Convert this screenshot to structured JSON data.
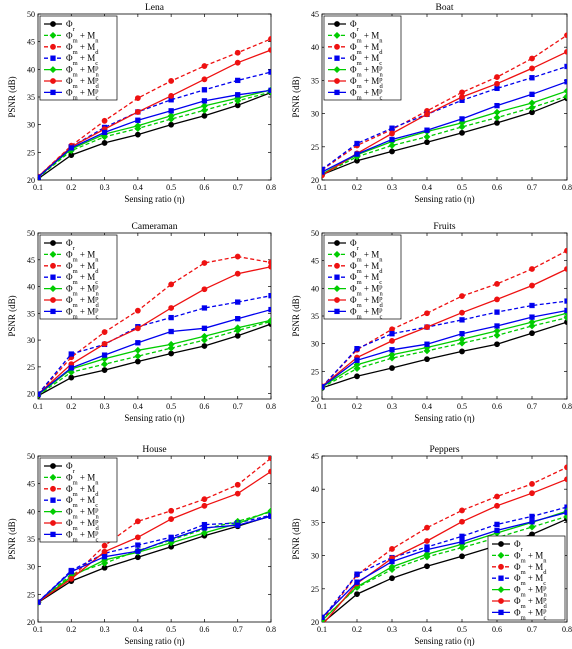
{
  "figure": {
    "x_ticks": [
      "0.1",
      "0.2",
      "0.3",
      "0.4",
      "0.5",
      "0.6",
      "0.7",
      "0.8"
    ]
  },
  "legend_labels": [
    {
      "base": "Φ",
      "sub": "r",
      "sup": "",
      "dashed": false,
      "color": "#000000",
      "marker": "circle"
    },
    {
      "base": "Φ",
      "sub": "m",
      "plus": " + M",
      "sub2": "n",
      "sup": "",
      "dashed": true,
      "color": "#00cc00",
      "marker": "diamond"
    },
    {
      "base": "Φ",
      "sub": "m",
      "plus": " + M",
      "sub2": "d",
      "sup": "",
      "dashed": true,
      "color": "#ee1111",
      "marker": "circle"
    },
    {
      "base": "Φ",
      "sub": "m",
      "plus": " + M",
      "sub2": "c",
      "sup": "",
      "dashed": true,
      "color": "#0000ee",
      "marker": "square"
    },
    {
      "base": "Φ",
      "sub": "m",
      "plus": " + M",
      "sub2": "n",
      "sup": "p",
      "dashed": false,
      "color": "#00cc00",
      "marker": "diamond"
    },
    {
      "base": "Φ",
      "sub": "m",
      "plus": " + M",
      "sub2": "d",
      "sup": "p",
      "dashed": false,
      "color": "#ee1111",
      "marker": "circle"
    },
    {
      "base": "Φ",
      "sub": "m",
      "plus": " + M",
      "sub2": "c",
      "sup": "p",
      "dashed": false,
      "color": "#0000ee",
      "marker": "square"
    }
  ],
  "chart_data": [
    {
      "type": "line",
      "title": "Lena",
      "xlabel": "Sensing ratio (η)",
      "ylabel": "PSNR (dB)",
      "ylim": [
        20,
        50
      ],
      "yticks": [
        20,
        25,
        30,
        35,
        40,
        45,
        50
      ],
      "legend": "top-left",
      "x": [
        0.1,
        0.2,
        0.3,
        0.4,
        0.5,
        0.6,
        0.7,
        0.8
      ],
      "series": [
        {
          "name": "Φr",
          "values": [
            20.2,
            24.5,
            26.7,
            28.2,
            30.0,
            31.6,
            33.5,
            35.8
          ]
        },
        {
          "name": "Φm + Mn",
          "values": [
            20.4,
            25.3,
            27.8,
            29.3,
            31.0,
            32.6,
            34.3,
            35.9
          ]
        },
        {
          "name": "Φm + Md",
          "values": [
            20.6,
            26.2,
            30.7,
            34.8,
            37.9,
            40.6,
            43.0,
            45.5
          ]
        },
        {
          "name": "Φm + Mc",
          "values": [
            20.5,
            26.0,
            29.5,
            32.3,
            34.5,
            36.3,
            38.0,
            39.5
          ]
        },
        {
          "name": "Φm + Mn^p",
          "values": [
            20.5,
            25.6,
            28.3,
            29.8,
            31.6,
            33.4,
            34.8,
            36.3
          ]
        },
        {
          "name": "Φm + Md^p",
          "values": [
            20.6,
            26.0,
            29.2,
            32.3,
            35.2,
            38.2,
            41.2,
            43.5
          ]
        },
        {
          "name": "Φm + Mc^p",
          "values": [
            20.5,
            25.8,
            28.6,
            30.8,
            32.5,
            34.3,
            35.4,
            36.2
          ]
        }
      ]
    },
    {
      "type": "line",
      "title": "Boat",
      "xlabel": "Sensing ratio (η)",
      "ylabel": "PSNR (dB)",
      "ylim": [
        20,
        45
      ],
      "yticks": [
        20,
        25,
        30,
        35,
        40,
        45
      ],
      "legend": "top-left",
      "x": [
        0.1,
        0.2,
        0.3,
        0.4,
        0.5,
        0.6,
        0.7,
        0.8
      ],
      "series": [
        {
          "name": "Φr",
          "values": [
            20.8,
            22.9,
            24.3,
            25.7,
            27.1,
            28.6,
            30.2,
            32.3
          ]
        },
        {
          "name": "Φm + Mn",
          "values": [
            20.8,
            23.5,
            25.2,
            26.5,
            28.0,
            29.4,
            30.9,
            32.6
          ]
        },
        {
          "name": "Φm + Md",
          "values": [
            21.5,
            25.2,
            27.6,
            30.4,
            33.2,
            35.5,
            38.3,
            41.8
          ]
        },
        {
          "name": "Φm + Mc",
          "values": [
            21.6,
            25.5,
            27.8,
            29.9,
            32.0,
            33.8,
            35.4,
            37.1
          ]
        },
        {
          "name": "Φm + Mn^p",
          "values": [
            20.9,
            23.8,
            25.8,
            27.3,
            28.6,
            30.2,
            31.6,
            33.4
          ]
        },
        {
          "name": "Φm + Md^p",
          "values": [
            20.7,
            24.0,
            27.0,
            29.9,
            32.5,
            34.5,
            36.8,
            39.3
          ]
        },
        {
          "name": "Φm + Mc^p",
          "values": [
            21.2,
            23.9,
            26.1,
            27.5,
            29.2,
            31.2,
            32.9,
            34.8
          ]
        }
      ]
    },
    {
      "type": "line",
      "title": "Cameraman",
      "xlabel": "Sensing ratio (η)",
      "ylabel": "PSNR (dB)",
      "ylim": [
        19,
        50
      ],
      "yticks": [
        20,
        25,
        30,
        35,
        40,
        45,
        50
      ],
      "legend": "top-left",
      "x": [
        0.1,
        0.2,
        0.3,
        0.4,
        0.5,
        0.6,
        0.7,
        0.8
      ],
      "series": [
        {
          "name": "Φr",
          "values": [
            19.6,
            23.0,
            24.4,
            26.0,
            27.5,
            28.9,
            30.8,
            33.0
          ]
        },
        {
          "name": "Φm + Mn",
          "values": [
            19.7,
            24.0,
            25.5,
            27.0,
            28.5,
            30.0,
            31.8,
            33.5
          ]
        },
        {
          "name": "Φm + Md",
          "values": [
            19.8,
            26.8,
            31.5,
            35.5,
            40.4,
            44.4,
            45.6,
            44.5
          ]
        },
        {
          "name": "Φm + Mc",
          "values": [
            19.9,
            27.4,
            29.2,
            32.5,
            34.2,
            36.0,
            37.1,
            38.3
          ]
        },
        {
          "name": "Φm + Mn^p",
          "values": [
            19.8,
            24.6,
            26.5,
            28.1,
            29.2,
            30.7,
            32.3,
            33.7
          ]
        },
        {
          "name": "Φm + Md^p",
          "values": [
            19.9,
            25.5,
            29.3,
            32.2,
            36.0,
            39.5,
            42.4,
            43.7
          ]
        },
        {
          "name": "Φm + Mc^p",
          "values": [
            19.9,
            24.8,
            27.2,
            29.5,
            31.6,
            32.2,
            34.0,
            35.7
          ]
        }
      ]
    },
    {
      "type": "line",
      "title": "Fruits",
      "xlabel": "Sensing ratio (η)",
      "ylabel": "PSNR (dB)",
      "ylim": [
        20,
        50
      ],
      "yticks": [
        20,
        25,
        30,
        35,
        40,
        45,
        50
      ],
      "legend": "top-left",
      "x": [
        0.1,
        0.2,
        0.3,
        0.4,
        0.5,
        0.6,
        0.7,
        0.8
      ],
      "series": [
        {
          "name": "Φr",
          "values": [
            22.0,
            24.1,
            25.6,
            27.2,
            28.6,
            29.9,
            31.9,
            33.9
          ]
        },
        {
          "name": "Φm + Mn",
          "values": [
            22.1,
            25.5,
            27.4,
            28.7,
            30.1,
            31.5,
            33.2,
            34.7
          ]
        },
        {
          "name": "Φm + Md",
          "values": [
            22.2,
            28.9,
            32.6,
            35.5,
            38.6,
            40.8,
            43.5,
            46.8
          ]
        },
        {
          "name": "Φm + Mc",
          "values": [
            22.2,
            29.1,
            31.8,
            33.0,
            34.3,
            35.7,
            36.9,
            37.7
          ]
        },
        {
          "name": "Φm + Mn^p",
          "values": [
            22.2,
            26.2,
            28.0,
            29.3,
            30.8,
            32.3,
            33.9,
            35.5
          ]
        },
        {
          "name": "Φm + Md^p",
          "values": [
            22.3,
            27.5,
            30.5,
            33.0,
            35.6,
            38.0,
            40.5,
            43.5
          ]
        },
        {
          "name": "Φm + Mc^p",
          "values": [
            22.2,
            27.0,
            28.9,
            29.9,
            31.8,
            33.2,
            34.8,
            36.0
          ]
        }
      ]
    },
    {
      "type": "line",
      "title": "House",
      "xlabel": "Sensing ratio (η)",
      "ylabel": "PSNR (dB)",
      "ylim": [
        20,
        50
      ],
      "yticks": [
        20,
        25,
        30,
        35,
        40,
        45,
        50
      ],
      "legend": "top-left",
      "x": [
        0.1,
        0.2,
        0.3,
        0.4,
        0.5,
        0.6,
        0.7,
        0.8
      ],
      "series": [
        {
          "name": "Φr",
          "values": [
            23.5,
            27.4,
            29.8,
            31.7,
            33.6,
            35.6,
            37.3,
            39.2
          ]
        },
        {
          "name": "Φm + Mn",
          "values": [
            23.5,
            28.6,
            30.6,
            32.9,
            34.8,
            36.8,
            38.2,
            39.9
          ]
        },
        {
          "name": "Φm + Md",
          "values": [
            23.6,
            28.0,
            33.8,
            38.2,
            40.1,
            42.2,
            44.8,
            49.6
          ]
        },
        {
          "name": "Φm + Mc",
          "values": [
            23.6,
            29.3,
            32.4,
            33.9,
            35.3,
            37.6,
            37.9,
            39.3
          ]
        },
        {
          "name": "Φm + Mn^p",
          "values": [
            23.6,
            28.2,
            31.2,
            32.6,
            34.3,
            36.1,
            37.8,
            40.1
          ]
        },
        {
          "name": "Φm + Md^p",
          "values": [
            23.6,
            27.8,
            32.7,
            35.3,
            38.6,
            41.0,
            43.2,
            47.2
          ]
        },
        {
          "name": "Φm + Mc^p",
          "values": [
            23.6,
            29.1,
            31.8,
            32.8,
            35.0,
            37.0,
            37.5,
            39.1
          ]
        }
      ]
    },
    {
      "type": "line",
      "title": "Peppers",
      "xlabel": "Sensing ratio (η)",
      "ylabel": "PSNR (dB)",
      "ylim": [
        20,
        45
      ],
      "yticks": [
        20,
        25,
        30,
        35,
        40,
        45
      ],
      "legend": "bottom-right",
      "x": [
        0.1,
        0.2,
        0.3,
        0.4,
        0.5,
        0.6,
        0.7,
        0.8
      ],
      "series": [
        {
          "name": "Φr",
          "values": [
            19.8,
            24.2,
            26.6,
            28.4,
            29.9,
            31.5,
            33.2,
            35.5
          ]
        },
        {
          "name": "Φm + Mn",
          "values": [
            20.3,
            25.2,
            27.9,
            29.8,
            31.2,
            32.7,
            34.3,
            35.9
          ]
        },
        {
          "name": "Φm + Md",
          "values": [
            20.2,
            27.1,
            31.0,
            34.2,
            36.8,
            38.9,
            40.8,
            43.3
          ]
        },
        {
          "name": "Φm + Mc",
          "values": [
            20.5,
            27.2,
            29.7,
            31.3,
            32.9,
            34.7,
            35.9,
            37.3
          ]
        },
        {
          "name": "Φm + Mn^p",
          "values": [
            20.2,
            25.3,
            28.3,
            30.2,
            31.7,
            33.4,
            35.0,
            36.7
          ]
        },
        {
          "name": "Φm + Md^p",
          "values": [
            19.5,
            25.8,
            29.6,
            32.2,
            35.1,
            37.5,
            39.4,
            41.5
          ]
        },
        {
          "name": "Φm + Mc^p",
          "values": [
            20.7,
            26.0,
            29.1,
            30.9,
            32.1,
            33.8,
            35.1,
            36.5
          ]
        }
      ]
    }
  ]
}
